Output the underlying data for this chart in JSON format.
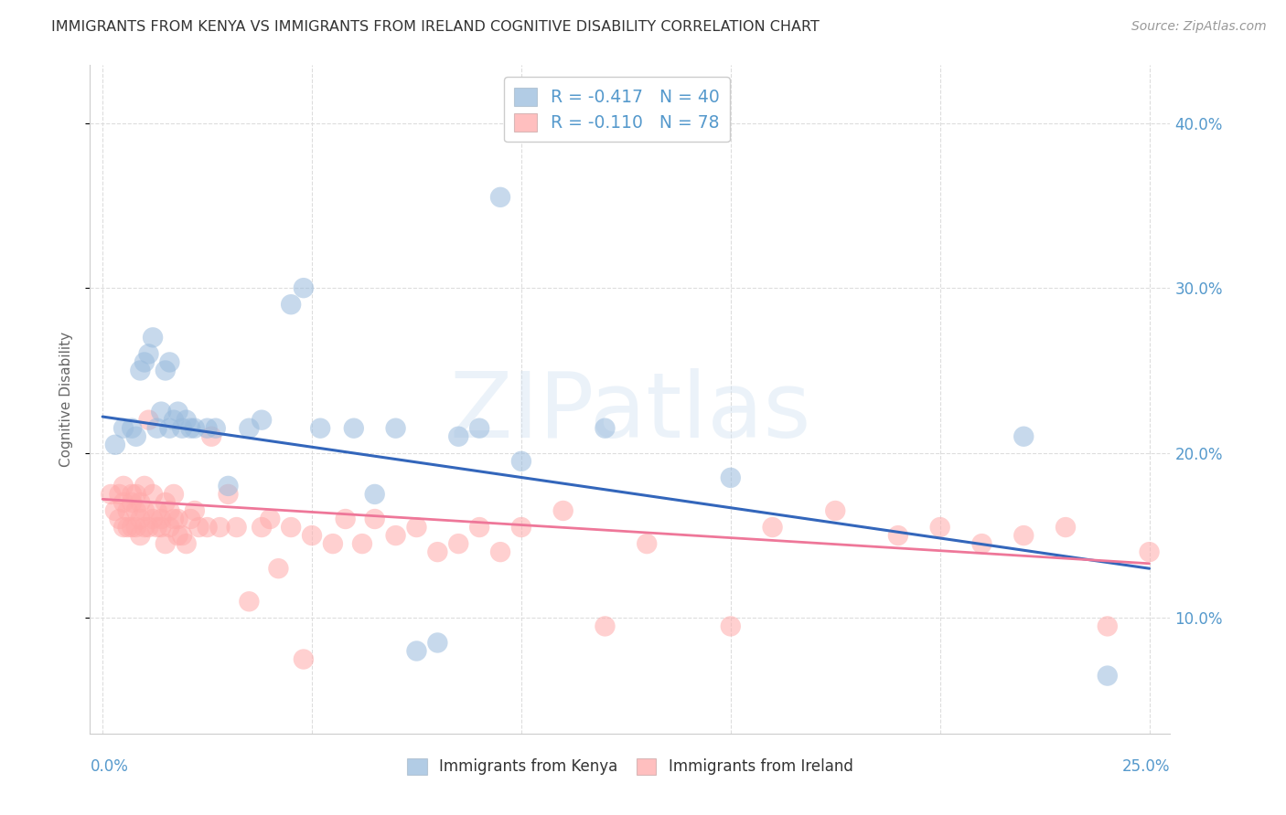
{
  "title": "IMMIGRANTS FROM KENYA VS IMMIGRANTS FROM IRELAND COGNITIVE DISABILITY CORRELATION CHART",
  "source": "Source: ZipAtlas.com",
  "ylabel": "Cognitive Disability",
  "xlim": [
    -0.003,
    0.255
  ],
  "ylim": [
    0.03,
    0.435
  ],
  "x_ticks": [
    0.0,
    0.05,
    0.1,
    0.15,
    0.2,
    0.25
  ],
  "y_ticks": [
    0.1,
    0.2,
    0.3,
    0.4
  ],
  "y_tick_labels": [
    "10.0%",
    "20.0%",
    "30.0%",
    "40.0%"
  ],
  "watermark": "ZIPatlas",
  "kenya_color": "#99BBDD",
  "ireland_color": "#FFAAAA",
  "kenya_line_color": "#3366BB",
  "ireland_line_color": "#EE7799",
  "background_color": "#ffffff",
  "grid_color": "#dddddd",
  "title_color": "#333333",
  "tick_color": "#5599cc",
  "kenya_x": [
    0.003,
    0.005,
    0.007,
    0.008,
    0.009,
    0.01,
    0.011,
    0.012,
    0.013,
    0.014,
    0.015,
    0.016,
    0.016,
    0.017,
    0.018,
    0.019,
    0.02,
    0.021,
    0.022,
    0.025,
    0.027,
    0.03,
    0.035,
    0.038,
    0.045,
    0.048,
    0.052,
    0.06,
    0.065,
    0.07,
    0.075,
    0.08,
    0.085,
    0.09,
    0.095,
    0.1,
    0.12,
    0.15,
    0.22,
    0.24
  ],
  "kenya_y": [
    0.205,
    0.215,
    0.215,
    0.21,
    0.25,
    0.255,
    0.26,
    0.27,
    0.215,
    0.225,
    0.25,
    0.255,
    0.215,
    0.22,
    0.225,
    0.215,
    0.22,
    0.215,
    0.215,
    0.215,
    0.215,
    0.18,
    0.215,
    0.22,
    0.29,
    0.3,
    0.215,
    0.215,
    0.175,
    0.215,
    0.08,
    0.085,
    0.21,
    0.215,
    0.355,
    0.195,
    0.215,
    0.185,
    0.21,
    0.065
  ],
  "ireland_x": [
    0.002,
    0.003,
    0.004,
    0.004,
    0.005,
    0.005,
    0.005,
    0.006,
    0.006,
    0.007,
    0.007,
    0.007,
    0.008,
    0.008,
    0.008,
    0.009,
    0.009,
    0.009,
    0.01,
    0.01,
    0.01,
    0.011,
    0.011,
    0.012,
    0.012,
    0.013,
    0.013,
    0.014,
    0.014,
    0.015,
    0.015,
    0.016,
    0.016,
    0.017,
    0.017,
    0.018,
    0.018,
    0.019,
    0.02,
    0.021,
    0.022,
    0.023,
    0.025,
    0.026,
    0.028,
    0.03,
    0.032,
    0.035,
    0.038,
    0.04,
    0.042,
    0.045,
    0.048,
    0.05,
    0.055,
    0.058,
    0.062,
    0.065,
    0.07,
    0.075,
    0.08,
    0.085,
    0.09,
    0.095,
    0.1,
    0.11,
    0.12,
    0.13,
    0.15,
    0.16,
    0.175,
    0.19,
    0.2,
    0.21,
    0.22,
    0.23,
    0.24,
    0.25
  ],
  "ireland_y": [
    0.175,
    0.165,
    0.16,
    0.175,
    0.155,
    0.17,
    0.18,
    0.155,
    0.165,
    0.155,
    0.17,
    0.175,
    0.155,
    0.165,
    0.175,
    0.15,
    0.16,
    0.17,
    0.155,
    0.165,
    0.18,
    0.155,
    0.22,
    0.16,
    0.175,
    0.155,
    0.165,
    0.155,
    0.16,
    0.145,
    0.17,
    0.155,
    0.165,
    0.16,
    0.175,
    0.15,
    0.16,
    0.15,
    0.145,
    0.16,
    0.165,
    0.155,
    0.155,
    0.21,
    0.155,
    0.175,
    0.155,
    0.11,
    0.155,
    0.16,
    0.13,
    0.155,
    0.075,
    0.15,
    0.145,
    0.16,
    0.145,
    0.16,
    0.15,
    0.155,
    0.14,
    0.145,
    0.155,
    0.14,
    0.155,
    0.165,
    0.095,
    0.145,
    0.095,
    0.155,
    0.165,
    0.15,
    0.155,
    0.145,
    0.15,
    0.155,
    0.095,
    0.14
  ],
  "kenya_line_x": [
    0.0,
    0.25
  ],
  "kenya_line_y": [
    0.222,
    0.13
  ],
  "ireland_line_x": [
    0.0,
    0.25
  ],
  "ireland_line_y": [
    0.172,
    0.133
  ]
}
